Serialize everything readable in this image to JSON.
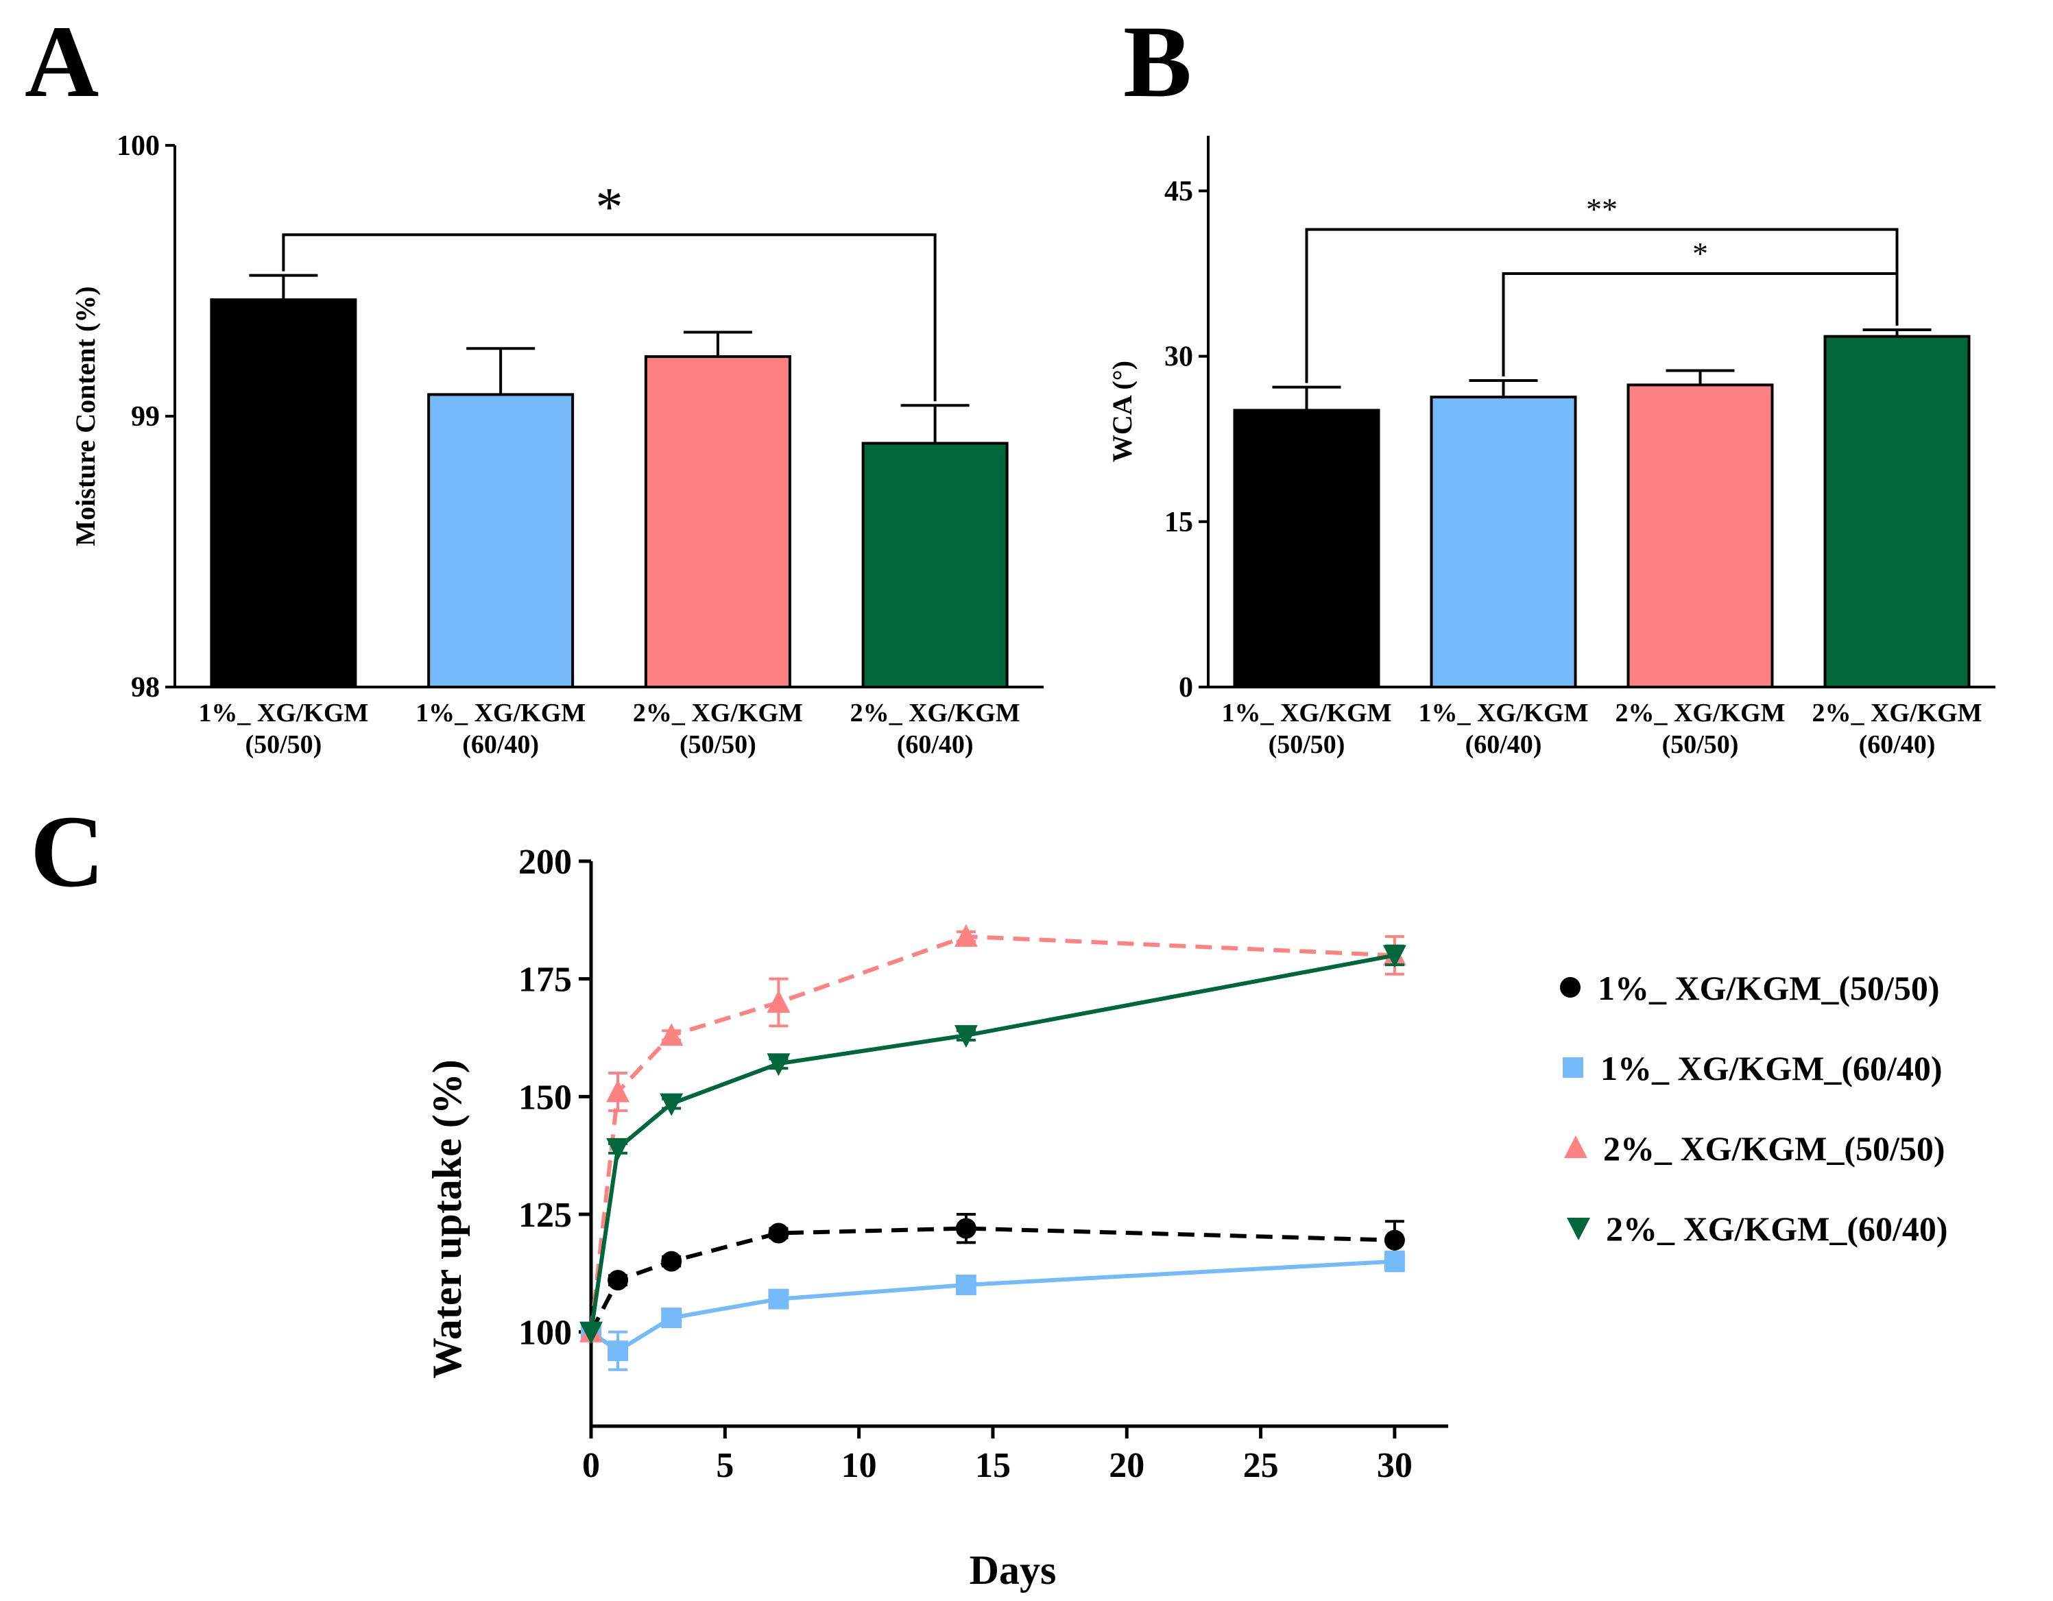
{
  "chart_data": [
    {
      "panel": "A",
      "type": "bar",
      "title": "",
      "xlabel": "",
      "ylabel": "Moisture Content (%)",
      "ylim": [
        98,
        100
      ],
      "yticks": [
        "98",
        "99",
        "100"
      ],
      "categories": [
        "1%_ XG/KGM\n(50/50)",
        "1%_ XG/KGM\n(60/40)",
        "2%_ XG/KGM\n(50/50)",
        "2%_ XG/KGM\n(60/40)"
      ],
      "category_lines": [
        [
          "1%_ XG/KGM",
          "(50/50)"
        ],
        [
          "1%_ XG/KGM",
          "(60/40)"
        ],
        [
          "2%_ XG/KGM",
          "(50/50)"
        ],
        [
          "2%_ XG/KGM",
          "(60/40)"
        ]
      ],
      "values": [
        99.43,
        99.08,
        99.22,
        98.9
      ],
      "errors": [
        0.09,
        0.17,
        0.09,
        0.14
      ],
      "colors": [
        "#000000",
        "#75bbfb",
        "#ff8282",
        "#00673d"
      ],
      "significance": [
        {
          "from": 0,
          "to": 3,
          "label": "*",
          "y": 99.67
        }
      ]
    },
    {
      "panel": "B",
      "type": "bar",
      "title": "",
      "xlabel": "",
      "ylabel": "WCA (°)",
      "ylim": [
        0,
        50
      ],
      "yticks": [
        "0",
        "15",
        "30",
        "45"
      ],
      "categories": [
        "1%_ XG/KGM\n(50/50)",
        "1%_ XG/KGM\n(60/40)",
        "2%_ XG/KGM\n(50/50)",
        "2%_ XG/KGM\n(60/40)"
      ],
      "category_lines": [
        [
          "1%_ XG/KGM",
          "(50/50)"
        ],
        [
          "1%_ XG/KGM",
          "(60/40)"
        ],
        [
          "2%_ XG/KGM",
          "(50/50)"
        ],
        [
          "2%_ XG/KGM",
          "(60/40)"
        ]
      ],
      "values": [
        25.1,
        26.3,
        27.4,
        31.8
      ],
      "errors": [
        2.1,
        1.5,
        1.3,
        0.6
      ],
      "colors": [
        "#000000",
        "#75bbfb",
        "#ff8282",
        "#00673d"
      ],
      "significance": [
        {
          "from": 0,
          "to": 3,
          "label": "**",
          "y": 41.5
        },
        {
          "from": 1,
          "to": 3,
          "label": "*",
          "y": 37.5
        }
      ]
    },
    {
      "panel": "C",
      "type": "line",
      "title": "",
      "xlabel": "Days",
      "ylabel": "Water uptake  (%)",
      "xlim": [
        0,
        32
      ],
      "ylim": [
        80,
        200
      ],
      "xticks": [
        "0",
        "5",
        "10",
        "15",
        "20",
        "25",
        "30"
      ],
      "yticks": [
        "100",
        "125",
        "150",
        "175",
        "200"
      ],
      "x": [
        0,
        1,
        3,
        7,
        14,
        30
      ],
      "series": [
        {
          "name": "1%_ XG/KGM_(50/50)",
          "values": [
            100,
            111,
            115,
            121,
            122,
            119.5
          ],
          "errors": [
            0,
            1,
            1,
            1,
            3,
            4
          ],
          "color": "#000000",
          "marker": "circle",
          "dash": "dashed"
        },
        {
          "name": "1%_ XG/KGM_(60/40)",
          "values": [
            100,
            96,
            103,
            107,
            110,
            115
          ],
          "errors": [
            0,
            4,
            1,
            1,
            1,
            2
          ],
          "color": "#75bbfb",
          "marker": "square",
          "dash": "solid"
        },
        {
          "name": "2%_ XG/KGM_(50/50)",
          "values": [
            100,
            151,
            163,
            170,
            184,
            180
          ],
          "errors": [
            0,
            4,
            1,
            5,
            1,
            4
          ],
          "color": "#ff8282",
          "marker": "triangle-up",
          "dash": "dashed"
        },
        {
          "name": "2%_ XG/KGM_(60/40)",
          "values": [
            100,
            139,
            148.5,
            157,
            163,
            180
          ],
          "errors": [
            0,
            1,
            1,
            1,
            1,
            2
          ],
          "color": "#00673d",
          "marker": "triangle-down",
          "dash": "solid"
        }
      ],
      "legend_position": "right"
    }
  ],
  "panel_labels": {
    "a": "A",
    "b": "B",
    "c": "C"
  }
}
